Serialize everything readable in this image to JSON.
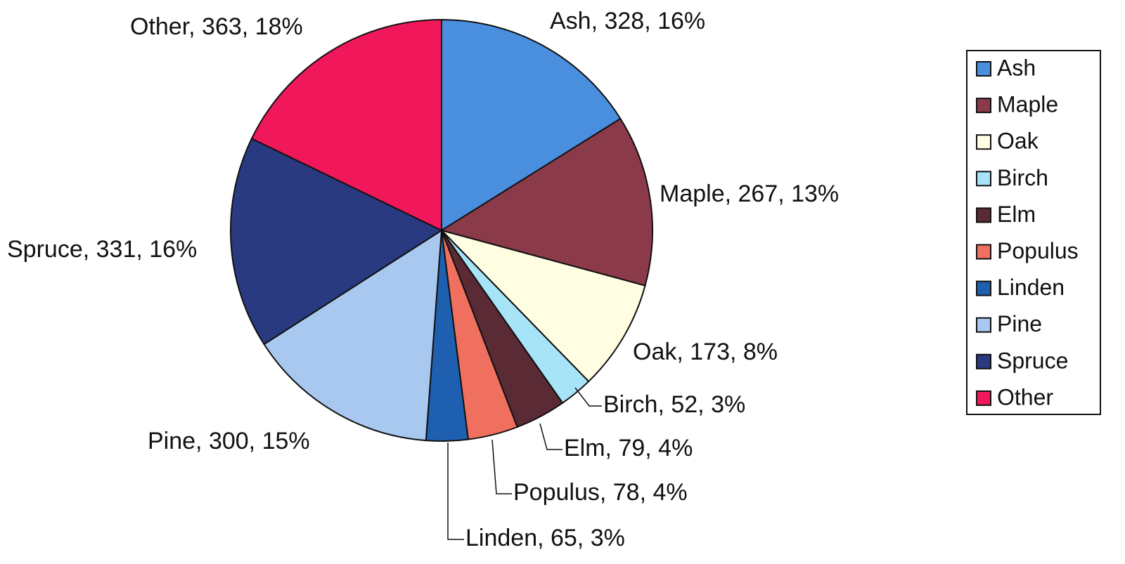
{
  "chart_data": {
    "type": "pie",
    "categories": [
      "Ash",
      "Maple",
      "Oak",
      "Birch",
      "Elm",
      "Populus",
      "Linden",
      "Pine",
      "Spruce",
      "Other"
    ],
    "values": [
      328,
      267,
      173,
      52,
      79,
      78,
      65,
      300,
      331,
      363
    ],
    "value_labels": [
      "Ash, 328, 16%",
      "Maple, 267, 13%",
      "Oak, 173, 8%",
      "Birch, 52, 3%",
      "Elm, 79, 4%",
      "Populus, 78, 4%",
      "Linden, 65, 3%",
      "Pine, 300, 15%",
      "Spruce, 331, 16%",
      "Other, 363, 18%"
    ],
    "colors": [
      "#4a8ede",
      "#8b3a4a",
      "#fffde2",
      "#a8e4f8",
      "#5a2a35",
      "#f07060",
      "#1f5fb0",
      "#a8c8f0",
      "#2a3a80",
      "#f0185a"
    ],
    "legend": "right"
  }
}
